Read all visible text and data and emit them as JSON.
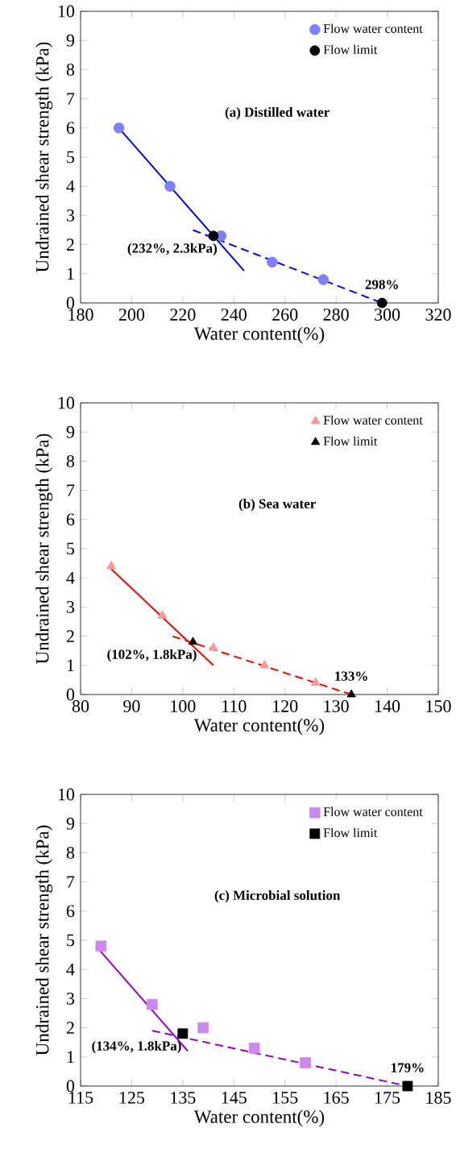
{
  "chart_data": [
    {
      "type": "scatter",
      "title": "(a) Distilled water",
      "xlabel": "Water content(%)",
      "ylabel": "Undrained shear strength (kPa)",
      "xlim": [
        180,
        320
      ],
      "xticks": [
        180,
        200,
        220,
        240,
        260,
        280,
        300,
        320
      ],
      "ylim": [
        0,
        10
      ],
      "yticks": [
        0,
        1,
        2,
        3,
        4,
        5,
        6,
        7,
        8,
        9,
        10
      ],
      "legend": "top right",
      "grid": false,
      "series": [
        {
          "name": "Flow water content",
          "color": "#8080ff",
          "marker": "circle",
          "x": [
            195,
            215,
            235,
            255,
            275
          ],
          "values": [
            6.0,
            4.0,
            2.3,
            1.4,
            0.8
          ]
        },
        {
          "name": "Flow limit",
          "color": "#000000",
          "marker": "circle",
          "x": [
            232,
            298
          ],
          "values": [
            2.3,
            0
          ]
        },
        {
          "type": "line",
          "color": "#0000ff",
          "line_style": "solid",
          "x": [
            195,
            244
          ],
          "values": [
            6.0,
            1.1
          ]
        },
        {
          "type": "line",
          "color": "#0000ff",
          "line_style": "dashed",
          "x": [
            224,
            298
          ],
          "values": [
            2.5,
            0
          ]
        }
      ],
      "annotations": [
        {
          "text": "(232%, 2.3kPa)",
          "x": 232,
          "y": 2.3
        },
        {
          "text": "298%",
          "x": 298,
          "y": 0
        }
      ]
    },
    {
      "type": "scatter",
      "title": "(b) Sea water",
      "xlabel": "Water content(%)",
      "ylabel": "Undrained shear strength (kPa)",
      "xlim": [
        80,
        150
      ],
      "xticks": [
        80,
        90,
        100,
        110,
        120,
        130,
        140,
        150
      ],
      "ylim": [
        0,
        10
      ],
      "yticks": [
        0,
        1,
        2,
        3,
        4,
        5,
        6,
        7,
        8,
        9,
        10
      ],
      "legend": "top right",
      "grid": false,
      "series": [
        {
          "name": "Flow water content",
          "color": "#ff9999",
          "marker": "triangle",
          "x": [
            86,
            96,
            106,
            116,
            126
          ],
          "values": [
            4.4,
            2.7,
            1.6,
            1.0,
            0.4
          ]
        },
        {
          "name": "Flow limit",
          "color": "#000000",
          "marker": "triangle",
          "x": [
            102,
            133
          ],
          "values": [
            1.8,
            0
          ]
        },
        {
          "type": "line",
          "color": "#ff0000",
          "line_style": "solid",
          "x": [
            86,
            106
          ],
          "values": [
            4.3,
            1.0
          ]
        },
        {
          "type": "line",
          "color": "#ff0000",
          "line_style": "dashed",
          "x": [
            98,
            133
          ],
          "values": [
            2.0,
            0
          ]
        }
      ],
      "annotations": [
        {
          "text": "(102%, 1.8kPa)",
          "x": 102,
          "y": 1.8
        },
        {
          "text": "133%",
          "x": 133,
          "y": 0
        }
      ]
    },
    {
      "type": "scatter",
      "title": "(c) Microbial solution",
      "xlabel": "Water content(%)",
      "ylabel": "Undrained shear strength (kPa)",
      "xlim": [
        115,
        185
      ],
      "xticks": [
        115,
        125,
        135,
        145,
        155,
        165,
        175,
        185
      ],
      "ylim": [
        0,
        10
      ],
      "yticks": [
        0,
        1,
        2,
        3,
        4,
        5,
        6,
        7,
        8,
        9,
        10
      ],
      "legend": "top right",
      "grid": false,
      "series": [
        {
          "name": "Flow water content",
          "color": "#cc88ee",
          "marker": "square",
          "x": [
            119,
            129,
            139,
            149,
            159
          ],
          "values": [
            4.8,
            2.8,
            2.0,
            1.3,
            0.8
          ]
        },
        {
          "name": "Flow limit",
          "color": "#000000",
          "marker": "square",
          "x": [
            135,
            179
          ],
          "values": [
            1.8,
            0
          ]
        },
        {
          "type": "line",
          "color": "#9900cc",
          "line_style": "solid",
          "x": [
            118,
            136
          ],
          "values": [
            4.8,
            1.2
          ]
        },
        {
          "type": "line",
          "color": "#9900cc",
          "line_style": "dashed",
          "x": [
            129,
            179
          ],
          "values": [
            1.9,
            0
          ]
        }
      ],
      "annotations": [
        {
          "text": "(134%, 1.8kPa)",
          "x": 134,
          "y": 1.8
        },
        {
          "text": "179%",
          "x": 179,
          "y": 0
        }
      ]
    }
  ]
}
